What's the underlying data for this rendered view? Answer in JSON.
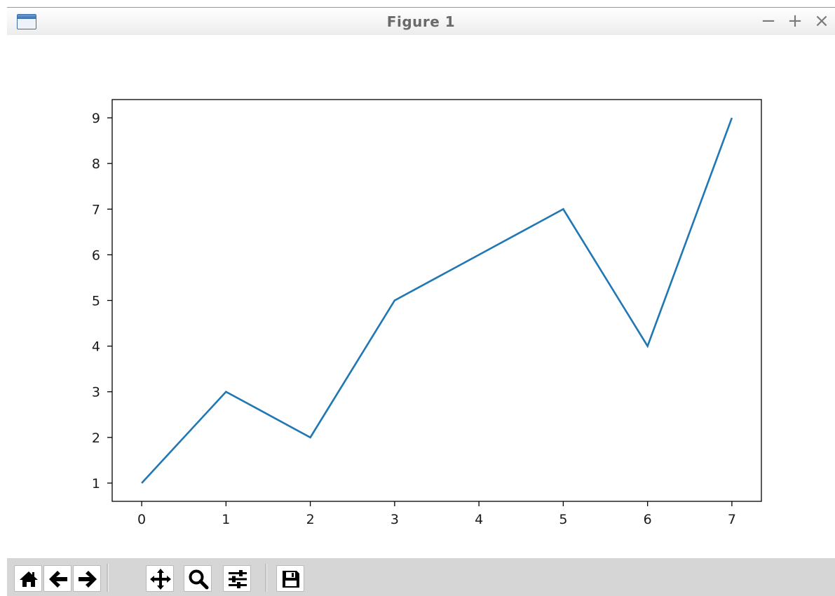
{
  "window": {
    "title": "Figure 1",
    "minimize_label": "−",
    "maximize_label": "+",
    "close_label": "×"
  },
  "toolbar": {
    "buttons": [
      {
        "icon": "home-icon",
        "name": "home-button"
      },
      {
        "icon": "back-arrow-icon",
        "name": "back-button"
      },
      {
        "icon": "forward-arrow-icon",
        "name": "forward-button"
      },
      {
        "icon": "pan-move-icon",
        "name": "pan-button"
      },
      {
        "icon": "zoom-magnifier-icon",
        "name": "zoom-button"
      },
      {
        "icon": "configure-subplots-icon",
        "name": "subplots-button"
      },
      {
        "icon": "save-floppy-icon",
        "name": "save-button"
      }
    ]
  },
  "colors": {
    "line": "#1f77b4",
    "axes": "#000000",
    "toolbar_bg": "#d6d6d6"
  },
  "chart_data": {
    "type": "line",
    "x": [
      0,
      1,
      2,
      3,
      4,
      5,
      6,
      7
    ],
    "series": [
      {
        "values": [
          1,
          3,
          2,
          5,
          6,
          7,
          4,
          9
        ]
      }
    ],
    "xticks": [
      "0",
      "1",
      "2",
      "3",
      "4",
      "5",
      "6",
      "7"
    ],
    "yticks": [
      "1",
      "2",
      "3",
      "4",
      "5",
      "6",
      "7",
      "8",
      "9"
    ],
    "xlim": [
      -0.35,
      7.35
    ],
    "ylim": [
      0.6,
      9.4
    ],
    "title": "",
    "xlabel": "",
    "ylabel": "",
    "grid": false,
    "legend": "none"
  }
}
